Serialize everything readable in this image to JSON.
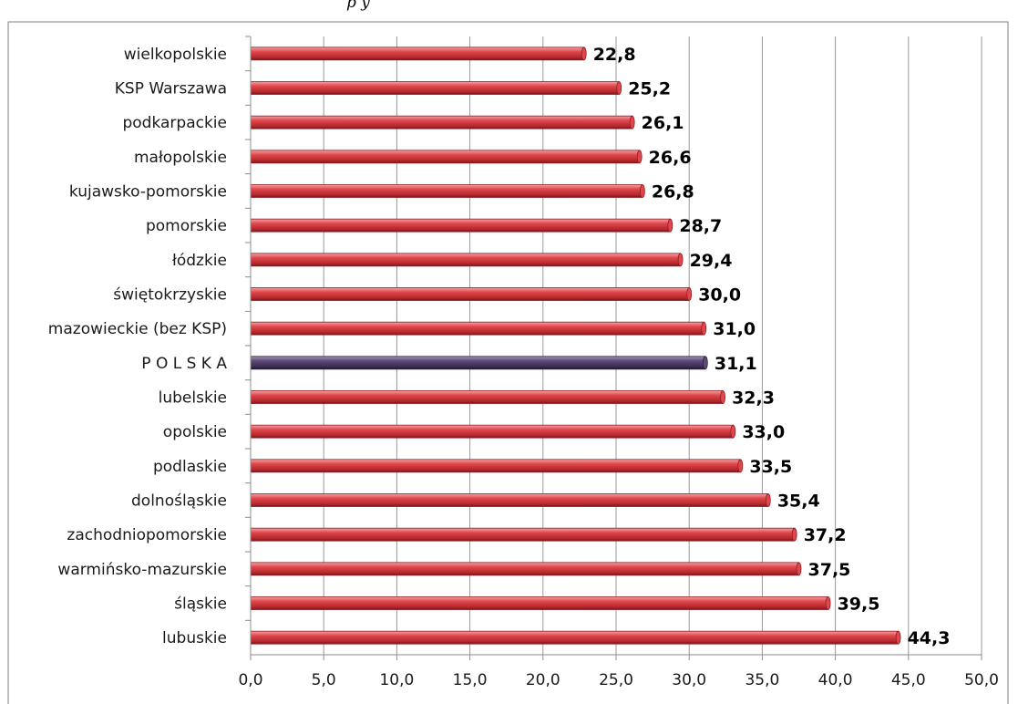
{
  "header_text_fragment": "p                    y",
  "colors": {
    "bar_default": "#e0474c",
    "bar_default_dark": "#8f1d22",
    "bar_highlight": "#5d4a78",
    "bar_highlight_dark": "#2a1f3a",
    "gridline": "#9a9a9a",
    "frame": "#7f7f7f",
    "axis": "#8c8c8c"
  },
  "chart_data": {
    "type": "bar",
    "orientation": "horizontal",
    "title": "",
    "xlabel": "",
    "ylabel": "",
    "xlim": [
      0,
      50
    ],
    "x_ticks": [
      "0,0",
      "5,0",
      "10,0",
      "15,0",
      "20,0",
      "25,0",
      "30,0",
      "35,0",
      "40,0",
      "45,0",
      "50,0"
    ],
    "x_tick_values": [
      0,
      5,
      10,
      15,
      20,
      25,
      30,
      35,
      40,
      45,
      50
    ],
    "grid": "vertical",
    "legend": "none",
    "categories": [
      "wielkopolskie",
      "KSP Warszawa",
      "podkarpackie",
      "małopolskie",
      "kujawsko-pomorskie",
      "pomorskie",
      "łódzkie",
      "świętokrzyskie",
      "mazowieckie (bez KSP)",
      "P O L S K A",
      "lubelskie",
      "opolskie",
      "podlaskie",
      "dolnośląskie",
      "zachodniopomorskie",
      "warmińsko-mazurskie",
      "śląskie",
      "lubuskie"
    ],
    "values": [
      22.8,
      25.2,
      26.1,
      26.6,
      26.8,
      28.7,
      29.4,
      30.0,
      31.0,
      31.1,
      32.3,
      33.0,
      33.5,
      35.4,
      37.2,
      37.5,
      39.5,
      44.3
    ],
    "data_labels": [
      "22,8",
      "25,2",
      "26,1",
      "26,6",
      "26,8",
      "28,7",
      "29,4",
      "30,0",
      "31,0",
      "31,1",
      "32,3",
      "33,0",
      "33,5",
      "35,4",
      "37,2",
      "37,5",
      "39,5",
      "44,3"
    ],
    "highlight_category": "P O L S K A"
  }
}
